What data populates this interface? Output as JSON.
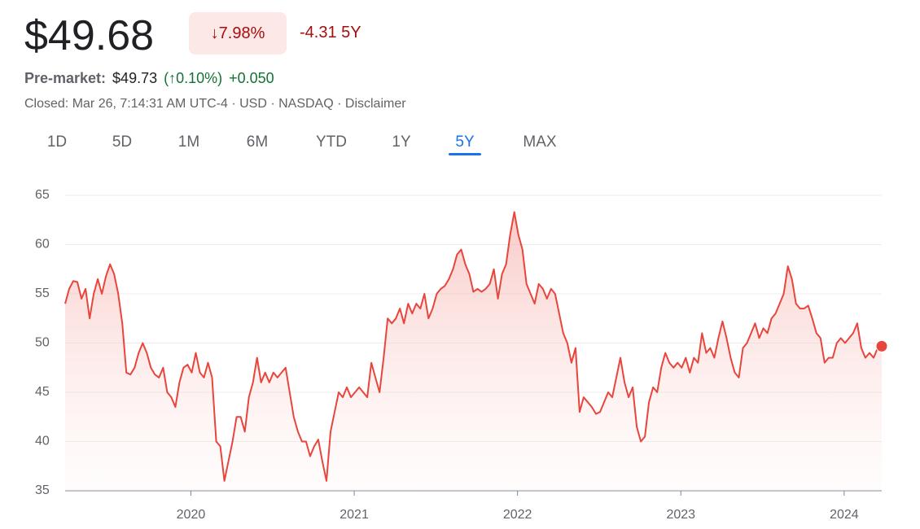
{
  "header": {
    "price": "$49.68",
    "change_percent": "↓7.98%",
    "change": "-4.31 5Y",
    "premarket_label": "Pre-market:",
    "premarket_price": "$49.73",
    "premarket_change_percent": "(↑0.10%)",
    "premarket_change": "+0.050",
    "status": "Closed: Mar 26, 7:14:31 AM UTC-4 · USD · NASDAQ · Disclaimer"
  },
  "tabs": [
    "1D",
    "5D",
    "1M",
    "6M",
    "YTD",
    "1Y",
    "5Y",
    "MAX"
  ],
  "active_tab": 6,
  "chart_data": {
    "type": "line",
    "color": "#e8453c",
    "grid": true,
    "end_marker": true,
    "xlim": [
      2019.23,
      2024.23
    ],
    "xticks": [
      2020,
      2021,
      2022,
      2023,
      2024
    ],
    "ylim": [
      35,
      65
    ],
    "yticks": [
      35,
      40,
      45,
      50,
      55,
      60,
      65
    ],
    "x": [
      2019.23,
      2019.255,
      2019.28,
      2019.305,
      2019.33,
      2019.355,
      2019.38,
      2019.405,
      2019.43,
      2019.455,
      2019.48,
      2019.505,
      2019.53,
      2019.555,
      2019.58,
      2019.605,
      2019.63,
      2019.655,
      2019.68,
      2019.705,
      2019.73,
      2019.755,
      2019.78,
      2019.805,
      2019.83,
      2019.855,
      2019.88,
      2019.905,
      2019.93,
      2019.955,
      2019.98,
      2020.005,
      2020.03,
      2020.055,
      2020.08,
      2020.105,
      2020.13,
      2020.155,
      2020.18,
      2020.205,
      2020.23,
      2020.255,
      2020.28,
      2020.305,
      2020.33,
      2020.355,
      2020.38,
      2020.405,
      2020.43,
      2020.455,
      2020.48,
      2020.505,
      2020.53,
      2020.555,
      2020.58,
      2020.605,
      2020.63,
      2020.655,
      2020.68,
      2020.705,
      2020.73,
      2020.755,
      2020.78,
      2020.805,
      2020.83,
      2020.855,
      2020.88,
      2020.905,
      2020.93,
      2020.955,
      2020.98,
      2021.005,
      2021.03,
      2021.055,
      2021.08,
      2021.105,
      2021.13,
      2021.155,
      2021.18,
      2021.205,
      2021.23,
      2021.255,
      2021.28,
      2021.305,
      2021.33,
      2021.355,
      2021.38,
      2021.405,
      2021.43,
      2021.455,
      2021.48,
      2021.505,
      2021.53,
      2021.555,
      2021.58,
      2021.605,
      2021.63,
      2021.655,
      2021.68,
      2021.705,
      2021.73,
      2021.755,
      2021.78,
      2021.805,
      2021.83,
      2021.855,
      2021.88,
      2021.905,
      2021.93,
      2021.955,
      2021.98,
      2022.005,
      2022.03,
      2022.055,
      2022.08,
      2022.105,
      2022.13,
      2022.155,
      2022.18,
      2022.205,
      2022.23,
      2022.255,
      2022.28,
      2022.305,
      2022.33,
      2022.355,
      2022.38,
      2022.405,
      2022.43,
      2022.455,
      2022.48,
      2022.505,
      2022.53,
      2022.555,
      2022.58,
      2022.605,
      2022.63,
      2022.655,
      2022.68,
      2022.705,
      2022.73,
      2022.755,
      2022.78,
      2022.805,
      2022.83,
      2022.855,
      2022.88,
      2022.905,
      2022.93,
      2022.955,
      2022.98,
      2023.005,
      2023.03,
      2023.055,
      2023.08,
      2023.105,
      2023.13,
      2023.155,
      2023.18,
      2023.205,
      2023.23,
      2023.255,
      2023.28,
      2023.305,
      2023.33,
      2023.355,
      2023.38,
      2023.405,
      2023.43,
      2023.455,
      2023.48,
      2023.505,
      2023.53,
      2023.555,
      2023.58,
      2023.605,
      2023.63,
      2023.655,
      2023.68,
      2023.705,
      2023.73,
      2023.755,
      2023.78,
      2023.805,
      2023.83,
      2023.855,
      2023.88,
      2023.905,
      2023.93,
      2023.955,
      2023.98,
      2024.005,
      2024.03,
      2024.055,
      2024.08,
      2024.105,
      2024.13,
      2024.155,
      2024.18,
      2024.205,
      2024.23
    ],
    "values": [
      54,
      55.5,
      56.3,
      56.2,
      54.5,
      55.5,
      52.5,
      55,
      56.5,
      55,
      56.8,
      58,
      57,
      55,
      52,
      47,
      46.8,
      47.5,
      49,
      50,
      49,
      47.5,
      46.8,
      46.5,
      47.5,
      45,
      44.5,
      43.5,
      46,
      47.5,
      47.8,
      47,
      49,
      47,
      46.5,
      48,
      46.5,
      40,
      39.5,
      36,
      38,
      40,
      42.5,
      42.5,
      41,
      44.5,
      46,
      48.5,
      46,
      47,
      46,
      47,
      46.5,
      47,
      47.5,
      45,
      42.5,
      41,
      40,
      40,
      38.5,
      39.5,
      40.2,
      38,
      36,
      41,
      43,
      45,
      44.5,
      45.5,
      44.5,
      45,
      45.5,
      45,
      44.5,
      48,
      46.5,
      45,
      48.5,
      52.5,
      52,
      52.5,
      53.5,
      52,
      54,
      53,
      54,
      53.5,
      55,
      52.5,
      53.5,
      55,
      55.5,
      55.8,
      56.5,
      57.5,
      59,
      59.5,
      58,
      57,
      55.2,
      55.5,
      55.2,
      55.5,
      56,
      57.5,
      54.5,
      57,
      58,
      61,
      63.3,
      61,
      59.5,
      56,
      55,
      54,
      56,
      55.5,
      54.5,
      55.5,
      55,
      53,
      51,
      50,
      48,
      49.5,
      43,
      44.5,
      44,
      43.5,
      42.8,
      43,
      44,
      45,
      44.5,
      46.5,
      48.5,
      46,
      44.5,
      45.5,
      41.5,
      40,
      40.5,
      44,
      45.5,
      45,
      47.5,
      49,
      48,
      47.5,
      48,
      47.5,
      48.5,
      47,
      48.5,
      48,
      51,
      49,
      49.5,
      48.5,
      50.5,
      52.2,
      50.5,
      48.5,
      47,
      46.5,
      49.5,
      50,
      51,
      52,
      50.5,
      51.5,
      51,
      52.5,
      53,
      54,
      55,
      57.8,
      56.5,
      54,
      53.5,
      53.5,
      53.8,
      52.5,
      51,
      50.5,
      48,
      48.5,
      48.5,
      50,
      50.5,
      50,
      50.5,
      51,
      52,
      49.5,
      48.5,
      49,
      48.5,
      49.5,
      49.68
    ]
  }
}
